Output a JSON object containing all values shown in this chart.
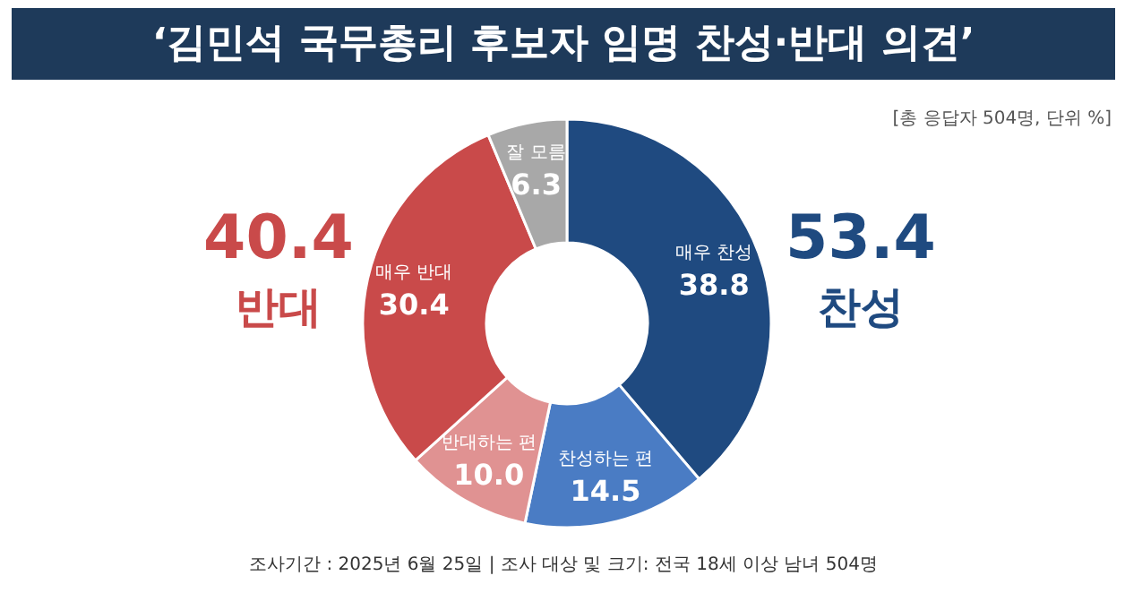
{
  "chart_data": {
    "type": "donut",
    "title": "‘김민석 국무총리 후보자 임명 찬성·반대 의견’",
    "subtitle": "[총 응답자 504명, 단위 %]",
    "categories": [
      "매우 찬성",
      "찬성하는 편",
      "반대하는 편",
      "매우 반대",
      "잘 모름"
    ],
    "values": [
      38.8,
      14.5,
      10.0,
      30.4,
      6.3
    ],
    "colors": [
      "#1f4a80",
      "#4a7cc4",
      "#e09292",
      "#c94a4a",
      "#a8a8a8"
    ],
    "value_labels": [
      "38.8",
      "14.5",
      "10.0",
      "30.4",
      "6.3"
    ],
    "annotations": [
      "40.4",
      "반대",
      "53.4",
      "찬성",
      "조사기간 : 2025년 6월 25일 | 조사 대상 및 크기: 전국 18세 이상 남녀 504명"
    ]
  }
}
